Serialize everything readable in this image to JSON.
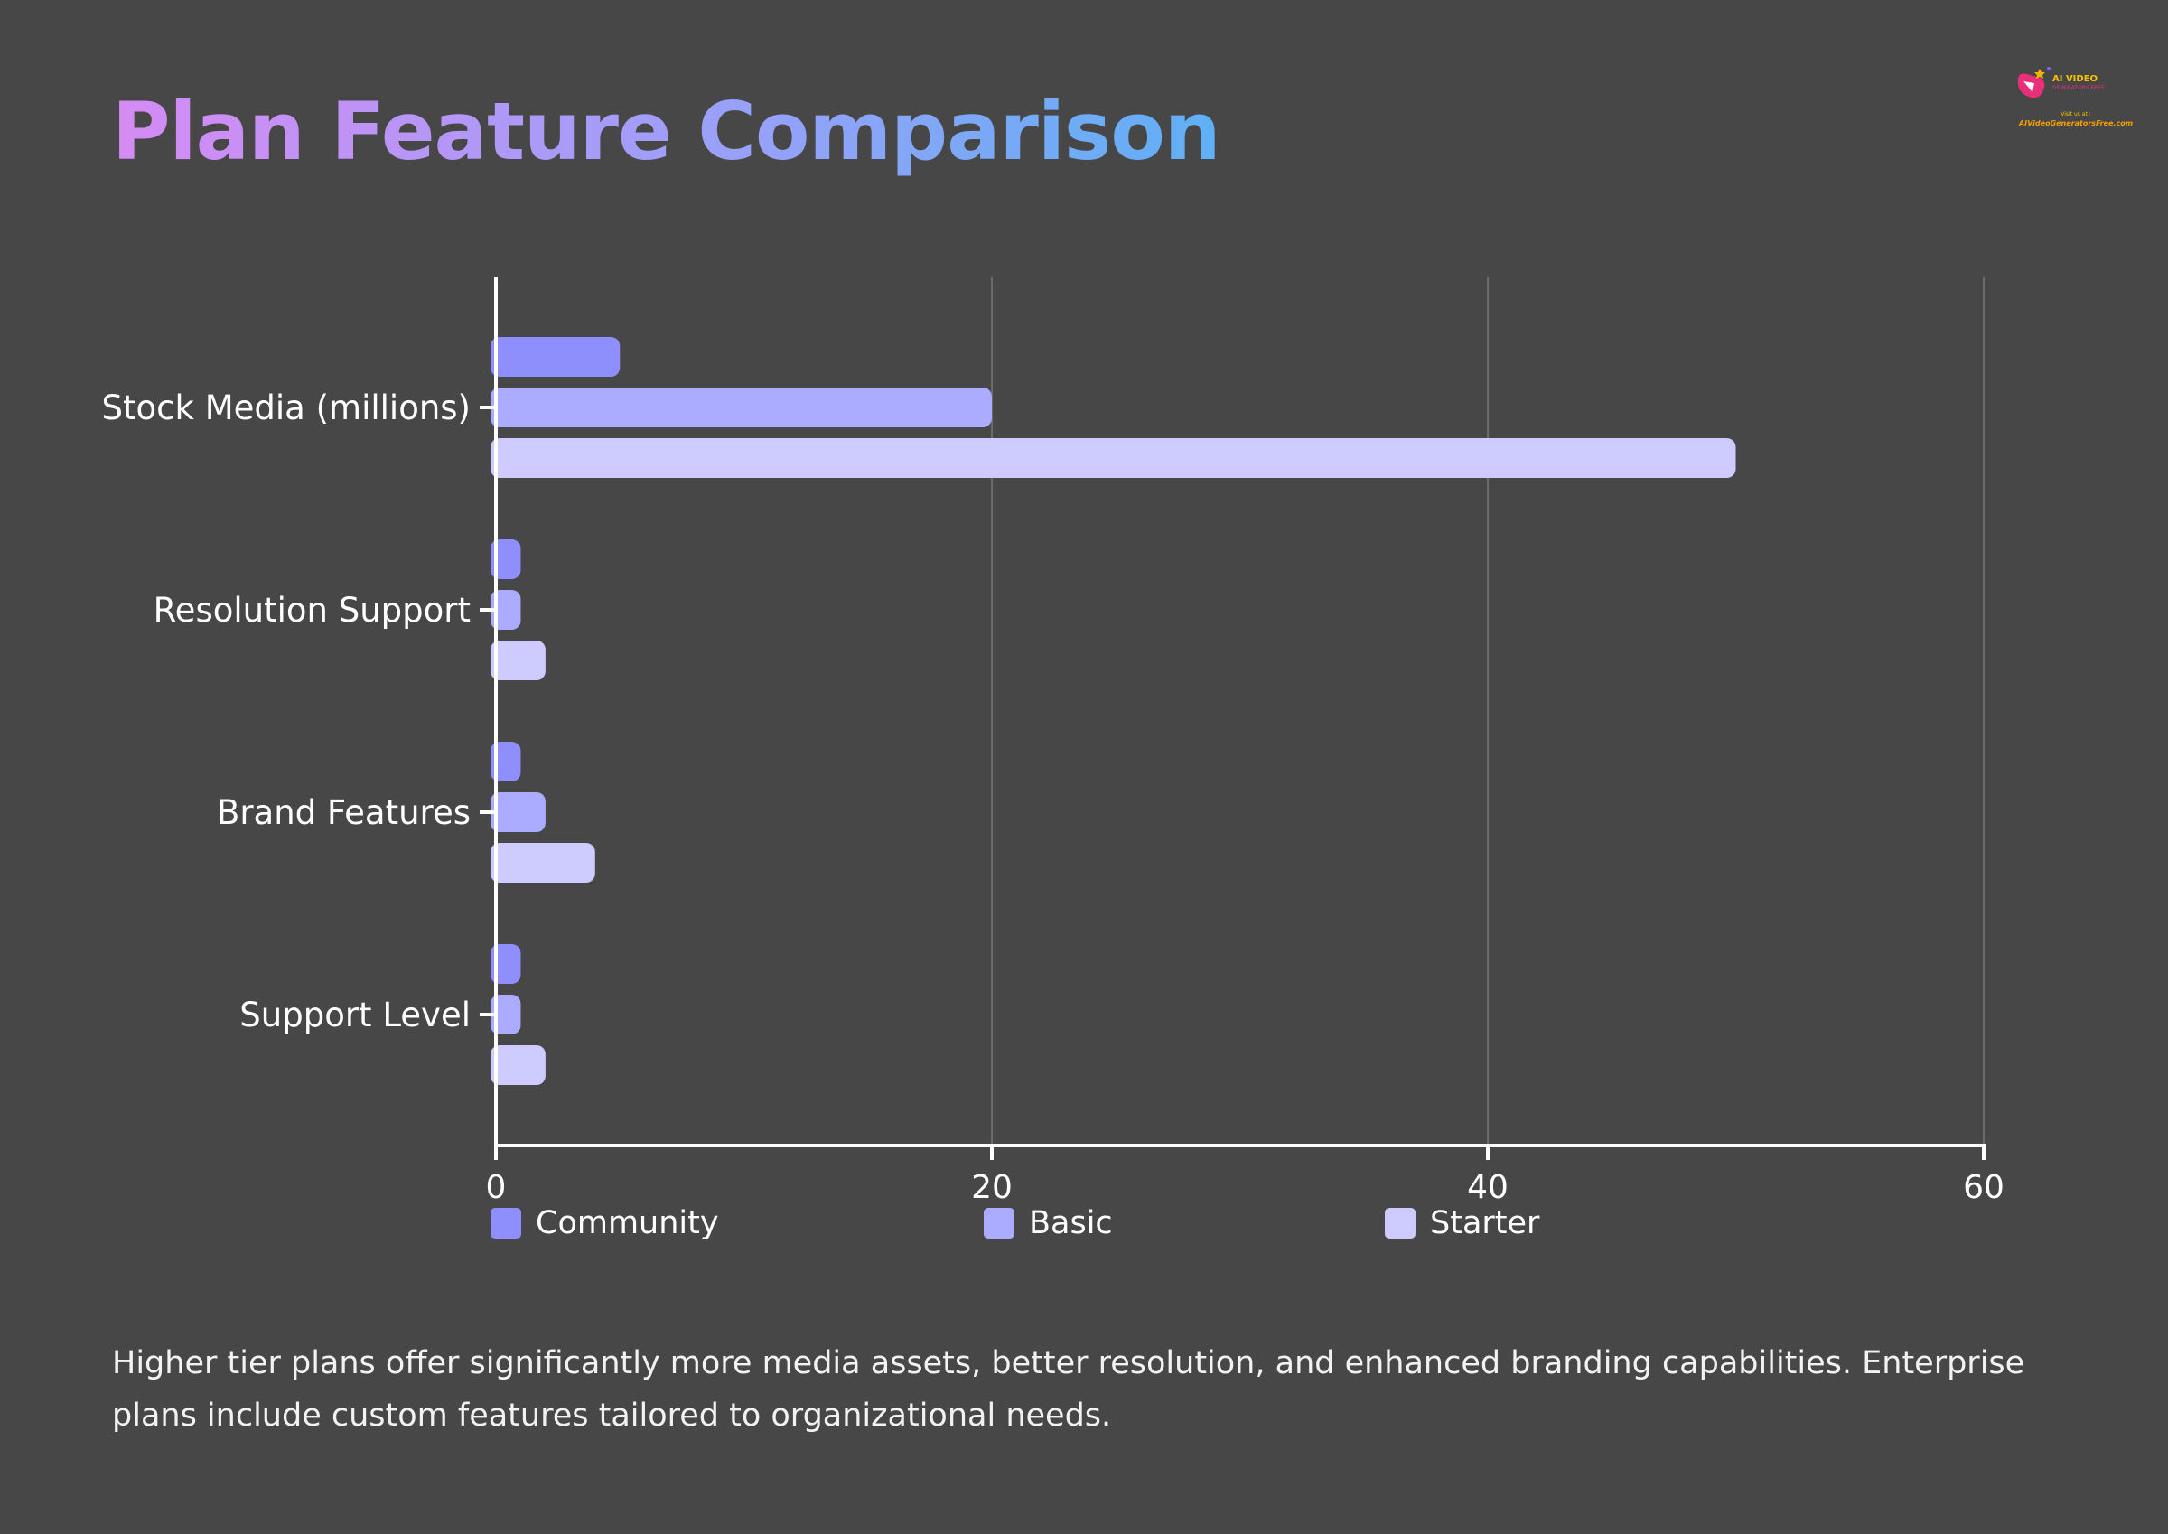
{
  "title": "Plan Feature Comparison",
  "logo": {
    "icon": "ai-video-logo-icon",
    "text_line1": "AI VIDEO",
    "text_line2": "GENERATORS FREE",
    "visit_label": "Visit us at :",
    "url_text": "AIVideoGeneratorsFree.com"
  },
  "colors": {
    "background": "#484748",
    "community": "#8e8ffd",
    "basic": "#ababff",
    "starter": "#cdcbff",
    "title_gradient_start": "#d58bf3",
    "title_gradient_end": "#5fb0f5"
  },
  "chart_data": {
    "type": "bar",
    "orientation": "horizontal",
    "categories": [
      "Stock Media (millions)",
      "Resolution Support",
      "Brand Features",
      "Support Level"
    ],
    "series": [
      {
        "name": "Community",
        "values": [
          5,
          1,
          1,
          1
        ]
      },
      {
        "name": "Basic",
        "values": [
          20,
          1,
          2,
          1
        ]
      },
      {
        "name": "Starter",
        "values": [
          50,
          2,
          4,
          2
        ]
      }
    ],
    "xlim": [
      0,
      60
    ],
    "x_ticks": [
      "0",
      "20",
      "40",
      "60"
    ],
    "grid": true,
    "legend": "bottom",
    "xlabel": "",
    "ylabel": ""
  },
  "caption": "Higher tier plans offer significantly more media assets, better resolution, and enhanced branding capabilities. Enterprise plans include custom features tailored to organizational needs."
}
